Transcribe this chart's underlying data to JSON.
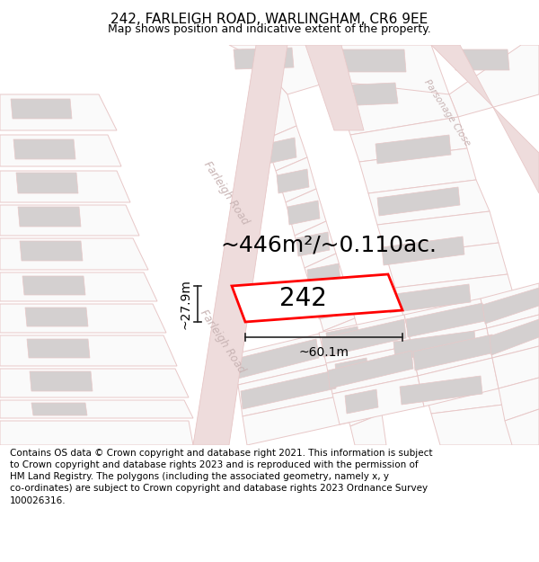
{
  "title": "242, FARLEIGH ROAD, WARLINGHAM, CR6 9EE",
  "subtitle": "Map shows position and indicative extent of the property.",
  "area_text": "~446m²/~0.110ac.",
  "label_242": "242",
  "dim_width": "~60.1m",
  "dim_height": "~27.9m",
  "road_label_lower": "Farleigh Road",
  "road_label_upper": "Farleigh Road",
  "road_label_right": "Parsonage Close",
  "footer": "Contains OS data © Crown copyright and database right 2021. This information is subject to Crown copyright and database rights 2023 and is reproduced with the permission of HM Land Registry. The polygons (including the associated geometry, namely x, y co-ordinates) are subject to Crown copyright and database rights 2023 Ordnance Survey 100026316.",
  "title_fontsize": 11,
  "subtitle_fontsize": 9,
  "footer_fontsize": 7.5,
  "area_fontsize": 18,
  "label_fontsize": 20,
  "road_label_fontsize": 8.5,
  "dim_fontsize": 10,
  "bg_white": "#ffffff",
  "map_bg": "#f5f3f3",
  "parcel_fill": "#f0eeee",
  "parcel_fill_light": "#fafafa",
  "gray_fill": "#d4d0d0",
  "road_edge": "#e8c8c8",
  "road_fill": "#eedcdc",
  "plot_edge": "#ff0000",
  "plot_fill": "#ffffff",
  "text_color": "#000000",
  "road_text_color": "#c8b4b4",
  "dim_color": "#222222"
}
